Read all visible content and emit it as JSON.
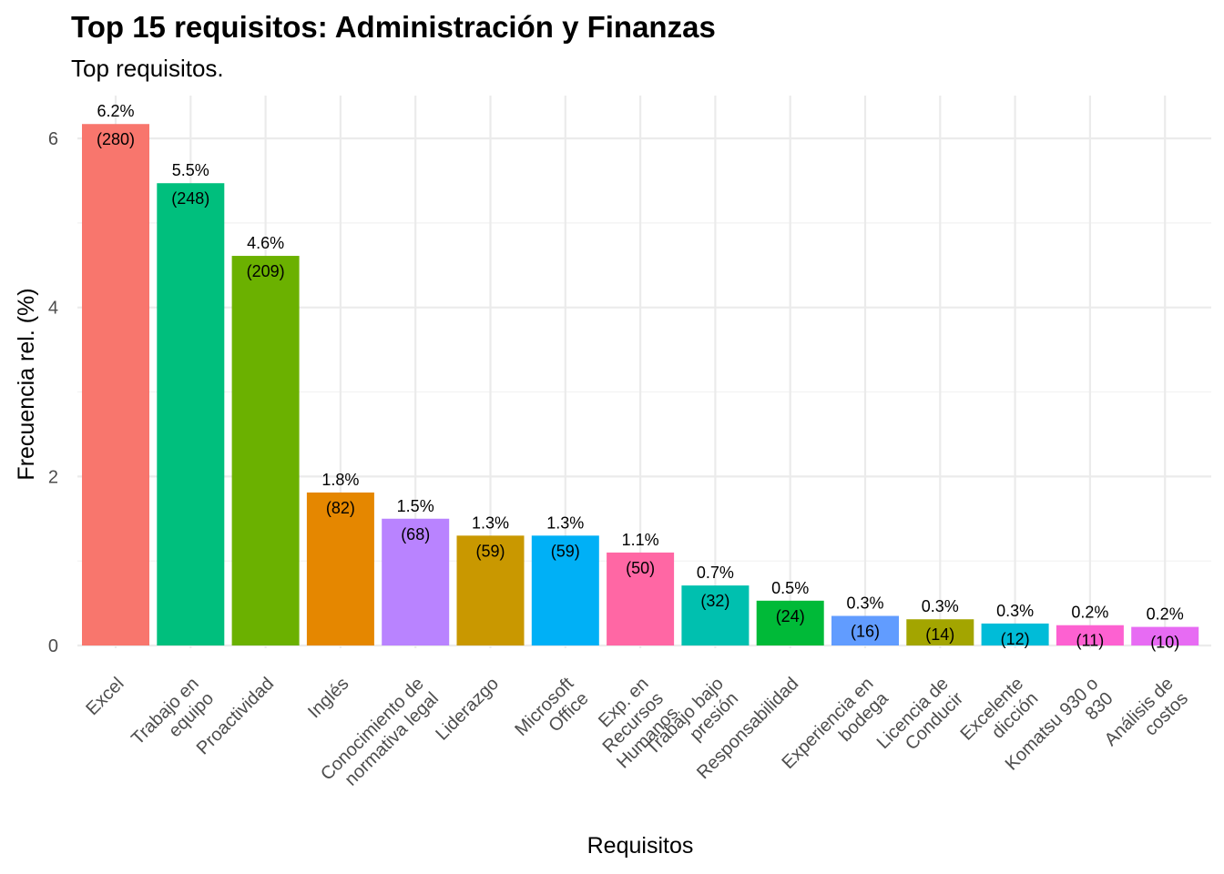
{
  "chart_data": {
    "type": "bar",
    "title": "Top 15 requisitos: Administración y Finanzas",
    "subtitle": "Top requisitos.",
    "xlabel": "Requisitos",
    "ylabel": "Frecuencia rel. (%)",
    "ylim": [
      0,
      6.3
    ],
    "yticks": [
      0,
      2,
      4,
      6
    ],
    "grid": true,
    "legend": "none",
    "categories": [
      [
        "Excel"
      ],
      [
        "Trabajo en",
        "equipo"
      ],
      [
        "Proactividad"
      ],
      [
        "Inglés"
      ],
      [
        "Conocimiento de",
        "normativa legal"
      ],
      [
        "Liderazgo"
      ],
      [
        "Microsoft",
        "Office"
      ],
      [
        "Exp. en",
        "Recursos",
        "Humanos"
      ],
      [
        "Trabajo bajo",
        "presión"
      ],
      [
        "Responsabilidad"
      ],
      [
        "Experiencia en",
        "bodega"
      ],
      [
        "Licencia de",
        "Conducir"
      ],
      [
        "Excelente",
        "dicción"
      ],
      [
        "Komatsu 930 o",
        "830"
      ],
      [
        "Análisis de",
        "costos"
      ]
    ],
    "values": [
      6.17,
      5.47,
      4.61,
      1.81,
      1.5,
      1.3,
      1.3,
      1.1,
      0.71,
      0.53,
      0.35,
      0.31,
      0.26,
      0.24,
      0.22
    ],
    "pct_labels": [
      "6.2%",
      "5.5%",
      "4.6%",
      "1.8%",
      "1.5%",
      "1.3%",
      "1.3%",
      "1.1%",
      "0.7%",
      "0.5%",
      "0.3%",
      "0.3%",
      "0.3%",
      "0.2%",
      "0.2%"
    ],
    "count_labels": [
      "(280)",
      "(248)",
      "(209)",
      "(82)",
      "(68)",
      "(59)",
      "(59)",
      "(50)",
      "(32)",
      "(24)",
      "(16)",
      "(14)",
      "(12)",
      "(11)",
      "(10)"
    ],
    "colors": [
      "#F8766D",
      "#00BF7D",
      "#6BB100",
      "#E58700",
      "#B983FF",
      "#C99800",
      "#00B0F6",
      "#FF67A4",
      "#00C0AF",
      "#00BA38",
      "#619CFF",
      "#A3A500",
      "#00BCD8",
      "#FD61D1",
      "#E76BF3"
    ]
  }
}
